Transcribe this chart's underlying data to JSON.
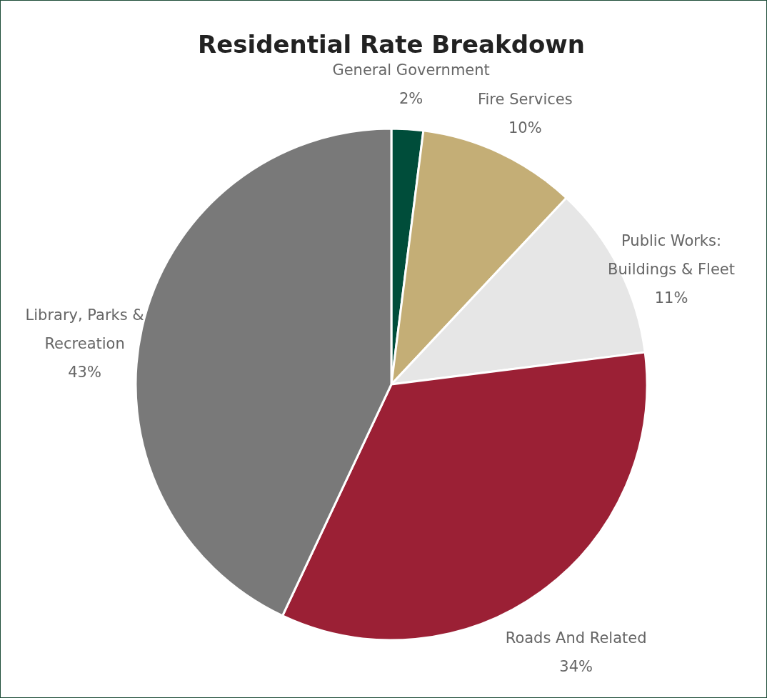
{
  "chart_data": {
    "type": "pie",
    "title": "Residential Rate Breakdown",
    "categories": [
      "General Government",
      "Fire Services",
      "Public Works: Buildings & Fleet",
      "Roads And Related",
      "Library, Parks & Recreation"
    ],
    "values": [
      2,
      10,
      11,
      34,
      43
    ],
    "value_labels": [
      "2%",
      "10%",
      "11%",
      "34%",
      "43%"
    ],
    "colors": [
      "#004d3a",
      "#c4ae76",
      "#e6e6e6",
      "#9b2035",
      "#797979"
    ],
    "legend": false
  }
}
